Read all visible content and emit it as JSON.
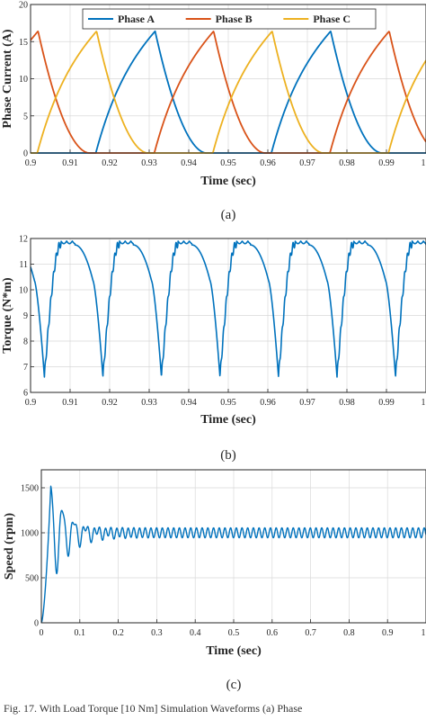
{
  "caption": "Fig. 17. With Load Torque [10 Nm] Simulation Waveforms (a) Phase",
  "colors": {
    "phaseA": "#0072BD",
    "phaseB": "#D95319",
    "phaseC": "#EDB120",
    "axis": "#262626",
    "grid": "#d9d9d9"
  },
  "chart_data": [
    {
      "id": "a",
      "type": "line",
      "sublabel": "(a)",
      "xlabel": "Time (sec)",
      "ylabel": "Phase Current (A)",
      "xlim": [
        0.9,
        1.0
      ],
      "ylim": [
        0,
        20
      ],
      "xticks": [
        "0.9",
        "0.91",
        "0.92",
        "0.93",
        "0.94",
        "0.95",
        "0.96",
        "0.97",
        "0.98",
        "0.99",
        "1"
      ],
      "yticks": [
        "0",
        "5",
        "10",
        "15",
        "20"
      ],
      "grid": true,
      "legend": "top, horizontal",
      "period": 0.0444,
      "series": [
        {
          "name": "Phase A",
          "color": "#0072BD",
          "peak_time": 0.9315,
          "peak_value": 16.4,
          "conduction_start": 0.9165,
          "conduction_end": 0.9445
        },
        {
          "name": "Phase B",
          "color": "#D95319",
          "peak_time": 0.9019,
          "peak_value": 16.4,
          "conduction_start": 0.8869,
          "conduction_end": 0.9149
        },
        {
          "name": "Phase C",
          "color": "#EDB120",
          "peak_time": 0.9167,
          "peak_value": 16.4,
          "conduction_start": 0.9017,
          "conduction_end": 0.9297
        }
      ]
    },
    {
      "id": "b",
      "type": "line",
      "sublabel": "(b)",
      "xlabel": "Time (sec)",
      "ylabel": "Torque (N*m)",
      "xlim": [
        0.9,
        1.0
      ],
      "ylim": [
        6,
        12
      ],
      "xticks": [
        "0.9",
        "0.91",
        "0.92",
        "0.93",
        "0.94",
        "0.95",
        "0.96",
        "0.97",
        "0.98",
        "0.99",
        "1"
      ],
      "yticks": [
        "6",
        "7",
        "8",
        "9",
        "10",
        "11",
        "12"
      ],
      "grid": true,
      "color": "#0072BD",
      "period": 0.0148,
      "max_value": 11.9,
      "min_value": 6.6,
      "min_times": [
        0.9035,
        0.9183,
        0.9331,
        0.9479,
        0.9627,
        0.9775,
        0.9923
      ]
    },
    {
      "id": "c",
      "type": "line",
      "sublabel": "(c)",
      "xlabel": "Time (sec)",
      "ylabel": "Speed (rpm)",
      "xlim": [
        0,
        1.0
      ],
      "ylim": [
        0,
        1700
      ],
      "xticks": [
        "0",
        "0.1",
        "0.2",
        "0.3",
        "0.4",
        "0.5",
        "0.6",
        "0.7",
        "0.8",
        "0.9",
        "1"
      ],
      "yticks": [
        "0",
        "500",
        "1000",
        "1500"
      ],
      "grid": true,
      "color": "#0072BD",
      "steady_value": 1000,
      "ripple": 55,
      "peak_value": 1560,
      "peak_time": 0.025,
      "first_min_value": 720
    }
  ]
}
